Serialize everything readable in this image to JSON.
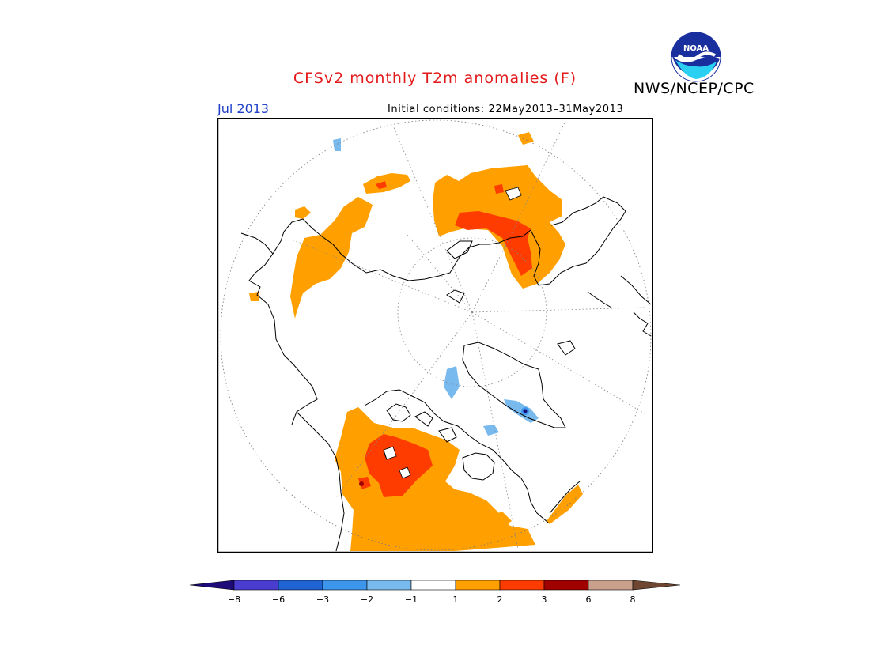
{
  "title": "CFSv2 monthly T2m anomalies (F)",
  "agency": "NWS/NCEP/CPC",
  "logo_text": "NOAA",
  "valid_month": "Jul 2013",
  "initial_conditions": "Initial conditions: 22May2013–31May2013",
  "colors": {
    "title": "#e31a1c",
    "month": "#1f3fc8",
    "anom_lt_m8": "#1e0a78",
    "anom_m8_m6": "#4b3cd0",
    "anom_m6_m3": "#1f64d2",
    "anom_m3_m2": "#3c96eb",
    "anom_m2_m1": "#78b9ee",
    "anom_m1_1": "#ffffff",
    "anom_1_2": "#ffa000",
    "anom_2_3": "#ff3c00",
    "anom_3_6": "#a00000",
    "anom_6_8": "#c8a08c",
    "anom_gt_8": "#6e4632"
  },
  "colorbar": {
    "ticks": [
      "−8",
      "−6",
      "−3",
      "−2",
      "−1",
      "1",
      "2",
      "3",
      "6",
      "8"
    ]
  },
  "projection": "north polar stereographic"
}
